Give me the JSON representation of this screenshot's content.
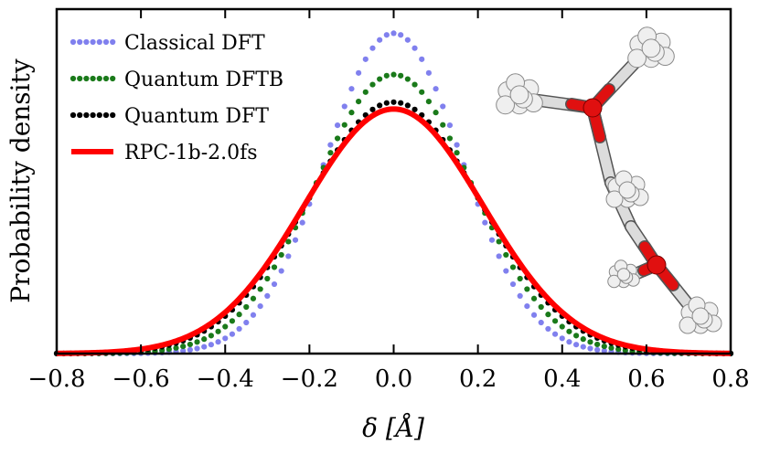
{
  "chart_data": {
    "type": "line",
    "title": "",
    "xlabel": "δ [Å]",
    "ylabel": "Probability density",
    "xlim": [
      -0.8,
      0.8
    ],
    "ylim": [
      0,
      1.0
    ],
    "xticks": [
      "−0.8",
      "−0.6",
      "−0.4",
      "−0.2",
      "0.0",
      "0.2",
      "0.4",
      "0.6",
      "0.8"
    ],
    "xtick_values": [
      -0.8,
      -0.6,
      -0.4,
      -0.2,
      0.0,
      0.2,
      0.4,
      0.6,
      0.8
    ],
    "yticks_labeled": false,
    "legend_position": "top-left",
    "inset": "molecular structure rendering (white/grey hydrogens, red oxygens) at right",
    "series": [
      {
        "name": "Classical DFT",
        "style": "dotted",
        "color": "#8080ee",
        "mean": 0.0,
        "sigma": 0.162,
        "peak": 0.93
      },
      {
        "name": "Quantum DFTB",
        "style": "dotted",
        "color": "#1a7a1a",
        "mean": 0.0,
        "sigma": 0.185,
        "peak": 0.81
      },
      {
        "name": "Quantum DFT",
        "style": "dotted",
        "color": "#000000",
        "mean": 0.0,
        "sigma": 0.205,
        "peak": 0.73
      },
      {
        "name": "RPC-1b-2.0fs",
        "style": "solid",
        "color": "#ff0000",
        "mean": 0.0,
        "sigma": 0.212,
        "peak": 0.71
      }
    ]
  }
}
